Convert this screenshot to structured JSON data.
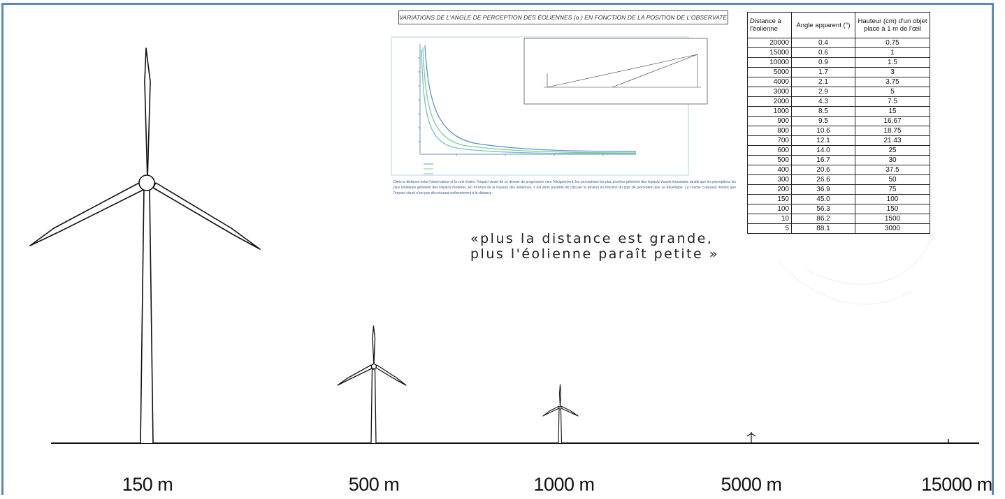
{
  "colors": {
    "frame": "#5b86c0",
    "ink": "#111111",
    "curve_blue": "#5b8fd9",
    "curve_green": "#7fd07f",
    "curve_teal": "#6fc7c0"
  },
  "distance_labels": [
    "150 m",
    "500 m",
    "1000 m",
    "5000 m",
    "15000 m"
  ],
  "figure": {
    "title": "VARIATIONS DE L'ANGLE DE PERCEPTION DES ÉOLIENNES (α ) EN FONCTION DE LA POSITION DE L'OBSERVATEUR",
    "caption": "Dans la distance entre l'observateur et la voie éolien, l'impact visuel de ce dernier de progression vers l'éloignement, les perceptions les plus proches générent des impacts visuels importants tandis que les perceptions les plus lointaines générent des impacts modérés. En fonction de la hauteur des éoliennes, il est alors possible de calculer le tension en fonction du type de perception que ce développe. La courbe ci-dessus montre que l'impact visuel n'est pas décroissant uniformément à la distance."
  },
  "tagline": {
    "line1": "«plus la distance est grande,",
    "line2": "plus l'éolienne paraît petite »"
  },
  "table": {
    "headers": [
      "Distance à l'éolienne",
      "Angle apparent (°)",
      "Hauteur (cm) d'un objet placé à 1 m de l'œil"
    ],
    "rows": [
      [
        "20000",
        "0.4",
        "0.75"
      ],
      [
        "15000",
        "0.6",
        "1"
      ],
      [
        "10000",
        "0.9",
        "1.5"
      ],
      [
        "5000",
        "1.7",
        "3"
      ],
      [
        "4000",
        "2.1",
        "3.75"
      ],
      [
        "3000",
        "2.9",
        "5"
      ],
      [
        "2000",
        "4.3",
        "7.5"
      ],
      [
        "1000",
        "8.5",
        "15"
      ],
      [
        "900",
        "9.5",
        "16.67"
      ],
      [
        "800",
        "10.6",
        "18.75"
      ],
      [
        "700",
        "12.1",
        "21.43"
      ],
      [
        "600",
        "14.0",
        "25"
      ],
      [
        "500",
        "16.7",
        "30"
      ],
      [
        "400",
        "20.6",
        "37.5"
      ],
      [
        "300",
        "26.6",
        "50"
      ],
      [
        "200",
        "36.9",
        "75"
      ],
      [
        "150",
        "45.0",
        "100"
      ],
      [
        "100",
        "56.3",
        "150"
      ],
      [
        "10",
        "86.2",
        "1500"
      ],
      [
        "5",
        "88.1",
        "3000"
      ]
    ]
  }
}
